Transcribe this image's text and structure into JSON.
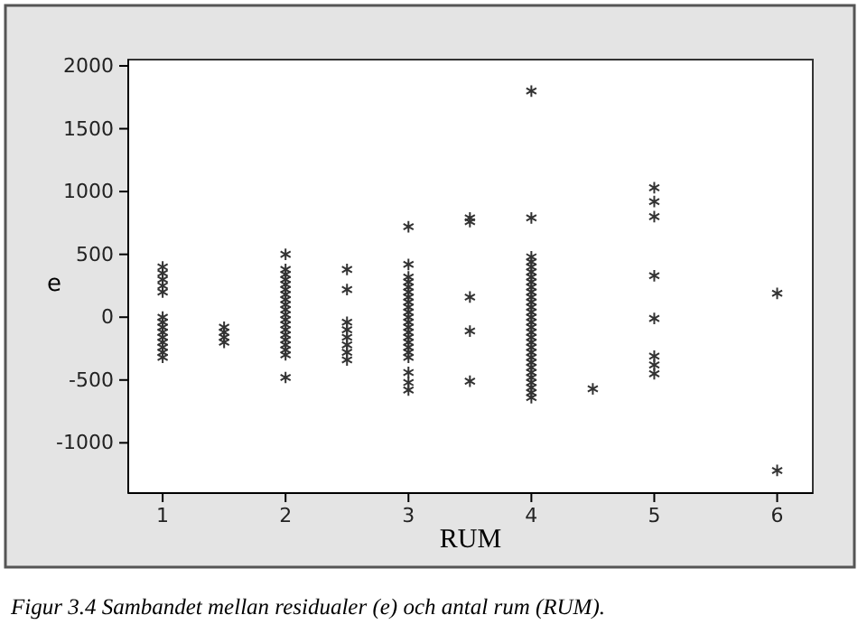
{
  "chart_data": {
    "type": "scatter",
    "xlabel": "RUM",
    "ylabel": "e",
    "annotations": [
      "Figur 3.4   Sambandet mellan residualer (e) och antal rum (RUM)."
    ],
    "marker": "cross",
    "grid": false,
    "xlim": [
      0.72,
      6.29
    ],
    "xticks": [
      1,
      2,
      3,
      4,
      5,
      6
    ],
    "ylim": [
      -1400,
      2050
    ],
    "yticks": [
      -1000,
      -500,
      0,
      500,
      1000,
      1500,
      2000
    ],
    "series": [
      {
        "color": "#333333",
        "x": [
          1,
          1,
          1,
          1,
          1,
          1,
          1,
          1,
          1,
          1,
          1,
          1,
          1,
          1,
          1.5,
          1.5,
          1.5,
          1.5,
          2,
          2,
          2,
          2,
          2,
          2,
          2,
          2,
          2,
          2,
          2,
          2,
          2,
          2,
          2,
          2,
          2,
          2,
          2,
          2,
          2.5,
          2.5,
          2.5,
          2.5,
          2.5,
          2.5,
          2.5,
          2.5,
          3,
          3,
          3,
          3,
          3,
          3,
          3,
          3,
          3,
          3,
          3,
          3,
          3,
          3,
          3,
          3,
          3,
          3,
          3,
          3,
          3,
          3,
          3.5,
          3.5,
          3.5,
          3.5,
          3.5,
          4,
          4,
          4,
          4,
          4,
          4,
          4,
          4,
          4,
          4,
          4,
          4,
          4,
          4,
          4,
          4,
          4,
          4,
          4,
          4,
          4,
          4,
          4,
          4,
          4,
          4,
          4,
          4,
          4,
          4,
          4,
          4.5,
          5,
          5,
          5,
          5,
          5,
          5,
          5,
          5,
          6,
          6
        ],
        "values": [
          -320,
          -280,
          -240,
          -200,
          -160,
          -120,
          -80,
          -40,
          0,
          200,
          250,
          300,
          350,
          400,
          -80,
          -120,
          -160,
          -200,
          500,
          380,
          340,
          300,
          260,
          220,
          180,
          140,
          100,
          60,
          20,
          -20,
          -60,
          -100,
          -140,
          -180,
          -220,
          -260,
          -300,
          -480,
          380,
          220,
          -40,
          -100,
          -160,
          -220,
          -280,
          -340,
          720,
          420,
          320,
          280,
          240,
          200,
          160,
          120,
          80,
          40,
          0,
          -40,
          -80,
          -120,
          -160,
          -200,
          -240,
          -280,
          -320,
          -440,
          -520,
          -580,
          790,
          760,
          160,
          -110,
          -510,
          1800,
          790,
          480,
          440,
          400,
          360,
          320,
          280,
          240,
          200,
          160,
          120,
          80,
          40,
          0,
          -40,
          -80,
          -120,
          -160,
          -200,
          -240,
          -280,
          -320,
          -360,
          -400,
          -440,
          -480,
          -520,
          -560,
          -600,
          -640,
          -570,
          1030,
          920,
          800,
          330,
          -10,
          -310,
          -380,
          -450,
          190,
          -1220
        ]
      }
    ]
  }
}
